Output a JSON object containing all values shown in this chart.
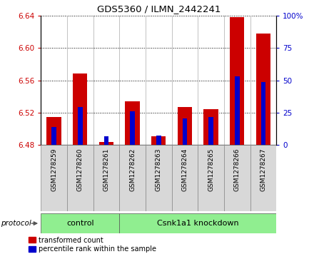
{
  "title": "GDS5360 / ILMN_2442241",
  "samples": [
    "GSM1278259",
    "GSM1278260",
    "GSM1278261",
    "GSM1278262",
    "GSM1278263",
    "GSM1278264",
    "GSM1278265",
    "GSM1278266",
    "GSM1278267"
  ],
  "red_values": [
    6.515,
    6.568,
    6.484,
    6.534,
    6.491,
    6.527,
    6.524,
    6.638,
    6.618
  ],
  "blue_values": [
    6.502,
    6.527,
    6.491,
    6.522,
    6.492,
    6.513,
    6.515,
    6.565,
    6.558
  ],
  "base": 6.48,
  "ylim_left": [
    6.48,
    6.64
  ],
  "yticks_left": [
    6.48,
    6.52,
    6.56,
    6.6,
    6.64
  ],
  "yticks_right": [
    0,
    25,
    50,
    75,
    100
  ],
  "ylim_right": [
    0,
    100
  ],
  "control_samples": 3,
  "group_labels": [
    "control",
    "Csnk1a1 knockdown"
  ],
  "group_color": "#90EE90",
  "bar_color_red": "#cc0000",
  "bar_color_blue": "#0000cc",
  "tick_bg_color": "#d8d8d8",
  "plot_bg": "#ffffff",
  "legend_red": "transformed count",
  "legend_blue": "percentile rank within the sample",
  "bar_width": 0.55,
  "blue_bar_width": 0.18
}
